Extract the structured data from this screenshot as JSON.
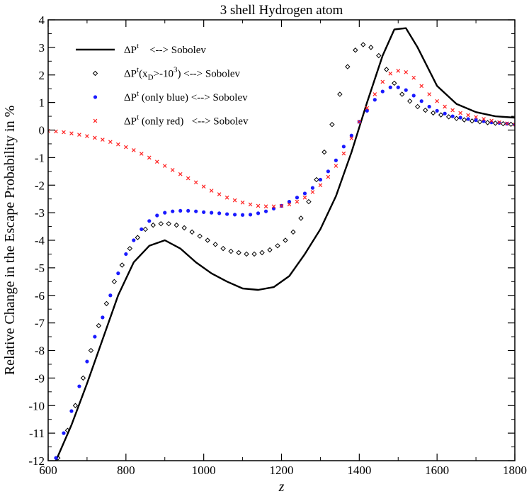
{
  "chart_data": {
    "type": "line",
    "title": "3 shell Hydrogen atom",
    "xlabel": "z",
    "ylabel": "Relative Change in the Escape Probability in %",
    "xlim": [
      600,
      1800
    ],
    "ylim": [
      -12,
      4
    ],
    "x_ticks": [
      "600",
      "800",
      "1000",
      "1200",
      "1400",
      "1600",
      "1800"
    ],
    "y_ticks": [
      "-12",
      "-11",
      "-10",
      "-9",
      "-8",
      "-7",
      "-6",
      "-5",
      "-4",
      "-3",
      "-2",
      "-1",
      "0",
      "1",
      "2",
      "3",
      "4"
    ],
    "grid": false,
    "legend_position": "top-left",
    "legend": [
      {
        "main": "ΔP",
        "sup": "t",
        "rest": "    <--> Sobolev"
      },
      {
        "main": "ΔP",
        "sup": "t",
        "rest": "(x",
        "sub": "D",
        "rest2": ">-10",
        "sup2": "3",
        "rest3": ") <--> Sobolev"
      },
      {
        "main": "ΔP",
        "sup": "t",
        "rest": " (only blue) <--> Sobolev"
      },
      {
        "main": "ΔP",
        "sup": "t",
        "rest": " (only red)   <--> Sobolev"
      }
    ],
    "series": [
      {
        "style": "line",
        "color": "#000000",
        "x": [
          620,
          660,
          700,
          740,
          780,
          820,
          860,
          900,
          940,
          980,
          1020,
          1060,
          1100,
          1140,
          1180,
          1220,
          1260,
          1300,
          1340,
          1380,
          1420,
          1460,
          1490,
          1520,
          1550,
          1600,
          1650,
          1700,
          1750,
          1800
        ],
        "y": [
          -12.0,
          -10.7,
          -9.2,
          -7.6,
          -6.0,
          -4.8,
          -4.2,
          -4.0,
          -4.3,
          -4.8,
          -5.2,
          -5.5,
          -5.75,
          -5.8,
          -5.7,
          -5.3,
          -4.5,
          -3.6,
          -2.4,
          -0.8,
          1.0,
          2.7,
          3.65,
          3.7,
          3.0,
          1.6,
          0.95,
          0.65,
          0.5,
          0.45
        ]
      },
      {
        "style": "diamond",
        "color": "#000000",
        "x": [
          625,
          650,
          670,
          690,
          710,
          730,
          750,
          770,
          790,
          810,
          830,
          850,
          870,
          890,
          910,
          930,
          950,
          970,
          990,
          1010,
          1030,
          1050,
          1070,
          1090,
          1110,
          1130,
          1150,
          1170,
          1190,
          1210,
          1230,
          1250,
          1270,
          1290,
          1310,
          1330,
          1350,
          1370,
          1390,
          1410,
          1430,
          1450,
          1470,
          1490,
          1510,
          1530,
          1550,
          1570,
          1590,
          1610,
          1630,
          1650,
          1670,
          1690,
          1710,
          1730,
          1750,
          1770,
          1790
        ],
        "y": [
          -11.9,
          -10.9,
          -10.0,
          -9.0,
          -8.0,
          -7.1,
          -6.3,
          -5.5,
          -4.9,
          -4.3,
          -3.9,
          -3.6,
          -3.45,
          -3.4,
          -3.4,
          -3.45,
          -3.55,
          -3.7,
          -3.85,
          -4.0,
          -4.15,
          -4.3,
          -4.4,
          -4.45,
          -4.5,
          -4.5,
          -4.45,
          -4.35,
          -4.2,
          -4.0,
          -3.7,
          -3.2,
          -2.6,
          -1.8,
          -0.8,
          0.2,
          1.3,
          2.3,
          2.9,
          3.1,
          3.0,
          2.7,
          2.2,
          1.7,
          1.3,
          1.05,
          0.85,
          0.72,
          0.62,
          0.55,
          0.48,
          0.42,
          0.37,
          0.33,
          0.3,
          0.27,
          0.25,
          0.23,
          0.21
        ]
      },
      {
        "style": "dot",
        "color": "#1a1aff",
        "x": [
          620,
          640,
          660,
          680,
          700,
          720,
          740,
          760,
          780,
          800,
          820,
          840,
          860,
          880,
          900,
          920,
          940,
          960,
          980,
          1000,
          1020,
          1040,
          1060,
          1080,
          1100,
          1120,
          1140,
          1160,
          1180,
          1200,
          1220,
          1240,
          1260,
          1280,
          1300,
          1320,
          1340,
          1360,
          1380,
          1400,
          1420,
          1440,
          1460,
          1480,
          1500,
          1520,
          1540,
          1560,
          1580,
          1600,
          1620,
          1640,
          1660,
          1680,
          1700,
          1720,
          1740,
          1760,
          1780,
          1800
        ],
        "y": [
          -11.9,
          -11.0,
          -10.2,
          -9.3,
          -8.4,
          -7.5,
          -6.8,
          -6.0,
          -5.2,
          -4.5,
          -4.0,
          -3.6,
          -3.3,
          -3.1,
          -3.0,
          -2.95,
          -2.93,
          -2.93,
          -2.95,
          -2.98,
          -3.0,
          -3.02,
          -3.05,
          -3.07,
          -3.08,
          -3.07,
          -3.02,
          -2.95,
          -2.85,
          -2.75,
          -2.6,
          -2.45,
          -2.3,
          -2.1,
          -1.8,
          -1.5,
          -1.1,
          -0.6,
          -0.2,
          0.3,
          0.7,
          1.1,
          1.4,
          1.55,
          1.55,
          1.45,
          1.25,
          1.05,
          0.85,
          0.7,
          0.6,
          0.5,
          0.45,
          0.4,
          0.36,
          0.32,
          0.28,
          0.26,
          0.23,
          0.2
        ]
      },
      {
        "style": "cross",
        "color": "#ff2020",
        "x": [
          600,
          620,
          640,
          660,
          680,
          700,
          720,
          740,
          760,
          780,
          800,
          820,
          840,
          860,
          880,
          900,
          920,
          940,
          960,
          980,
          1000,
          1020,
          1040,
          1060,
          1080,
          1100,
          1120,
          1140,
          1160,
          1180,
          1200,
          1220,
          1240,
          1260,
          1280,
          1300,
          1320,
          1340,
          1360,
          1380,
          1400,
          1420,
          1440,
          1460,
          1480,
          1500,
          1520,
          1540,
          1560,
          1580,
          1600,
          1620,
          1640,
          1660,
          1680,
          1700,
          1720,
          1740,
          1760,
          1780,
          1800
        ],
        "y": [
          -0.03,
          -0.05,
          -0.08,
          -0.12,
          -0.17,
          -0.22,
          -0.28,
          -0.35,
          -0.43,
          -0.52,
          -0.62,
          -0.73,
          -0.86,
          -1.0,
          -1.15,
          -1.3,
          -1.45,
          -1.6,
          -1.75,
          -1.9,
          -2.05,
          -2.2,
          -2.33,
          -2.45,
          -2.55,
          -2.63,
          -2.7,
          -2.75,
          -2.77,
          -2.77,
          -2.75,
          -2.7,
          -2.6,
          -2.45,
          -2.25,
          -2.0,
          -1.7,
          -1.3,
          -0.85,
          -0.3,
          0.3,
          0.8,
          1.3,
          1.75,
          2.05,
          2.15,
          2.1,
          1.9,
          1.6,
          1.3,
          1.05,
          0.85,
          0.72,
          0.62,
          0.54,
          0.47,
          0.4,
          0.34,
          0.28,
          0.24,
          0.2
        ]
      }
    ]
  }
}
